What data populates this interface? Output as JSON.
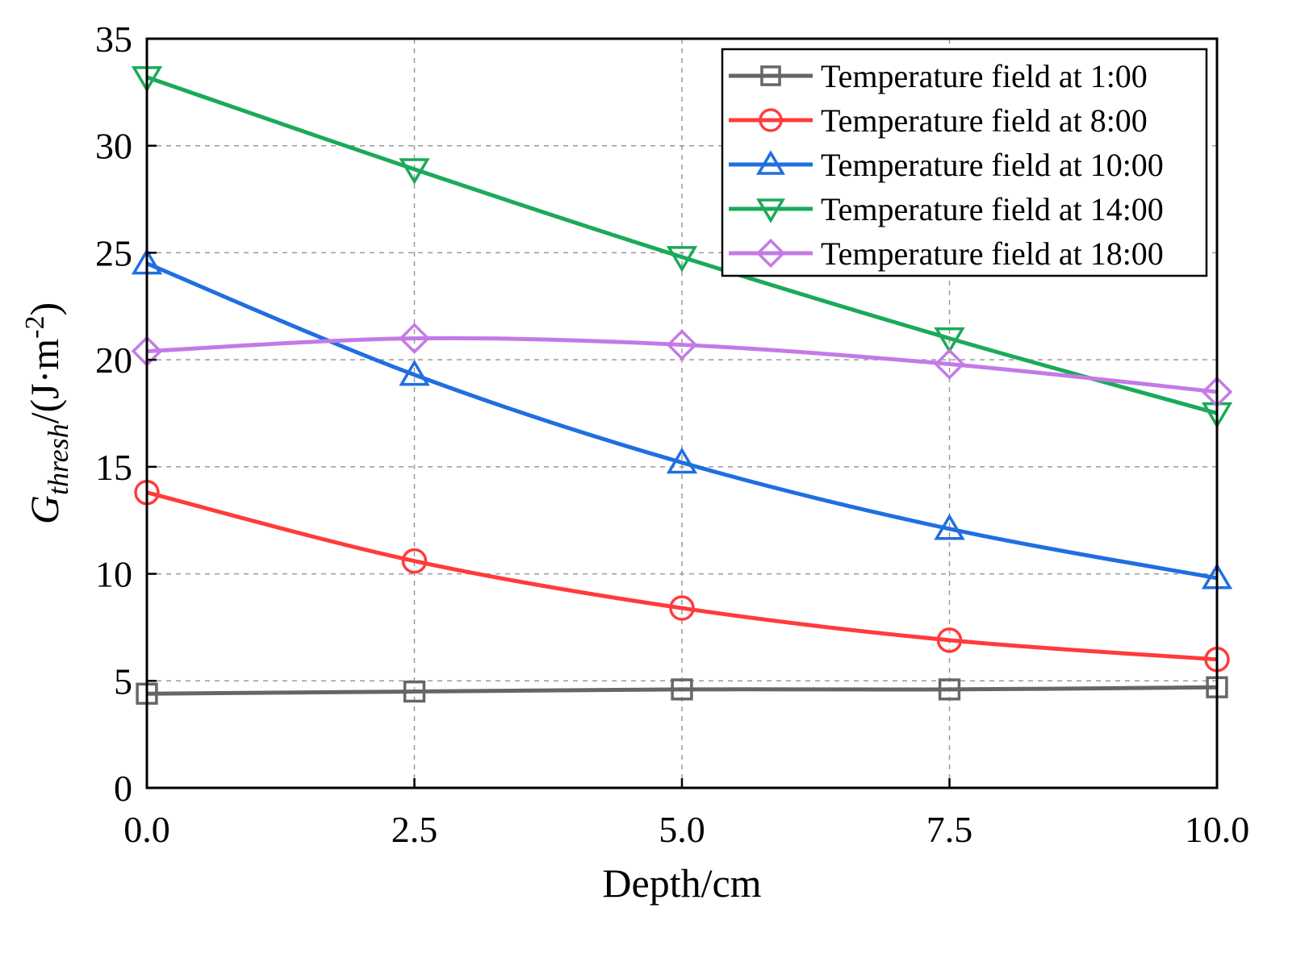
{
  "chart_data": {
    "type": "line",
    "title": "",
    "xlabel": "Depth/cm",
    "ylabel": {
      "main": "G",
      "subscript": "thresh",
      "unit_prefix": "/(J·m",
      "unit_sup": "-2",
      "unit_suffix": ")"
    },
    "xlim": [
      0,
      10
    ],
    "ylim": [
      0,
      35
    ],
    "xticks": [
      0,
      2.5,
      5,
      7.5,
      10
    ],
    "xtick_labels": [
      "0.0",
      "2.5",
      "5.0",
      "7.5",
      "10.0"
    ],
    "yticks": [
      0,
      5,
      10,
      15,
      20,
      25,
      30,
      35
    ],
    "ytick_labels": [
      "0",
      "5",
      "10",
      "15",
      "20",
      "25",
      "30",
      "35"
    ],
    "grid": true,
    "legend_position": "top-right",
    "x": [
      0,
      2.5,
      5,
      7.5,
      10
    ],
    "series": [
      {
        "name": "Temperature field at 1:00",
        "color": "#666666",
        "marker": "square",
        "values": [
          4.4,
          4.5,
          4.6,
          4.6,
          4.7
        ]
      },
      {
        "name": "Temperature field at 8:00",
        "color": "#ff3b3b",
        "marker": "circle",
        "values": [
          13.8,
          10.6,
          8.4,
          6.9,
          6.0
        ]
      },
      {
        "name": "Temperature field at 10:00",
        "color": "#1f6fe0",
        "marker": "triangle-up",
        "values": [
          24.5,
          19.3,
          15.2,
          12.1,
          9.8
        ]
      },
      {
        "name": "Temperature field at 14:00",
        "color": "#1aaa5a",
        "marker": "triangle-down",
        "values": [
          33.2,
          28.9,
          24.8,
          21.0,
          17.5
        ]
      },
      {
        "name": "Temperature field at 18:00",
        "color": "#c47ae6",
        "marker": "diamond",
        "values": [
          20.4,
          21.0,
          20.7,
          19.8,
          18.5
        ]
      }
    ]
  }
}
